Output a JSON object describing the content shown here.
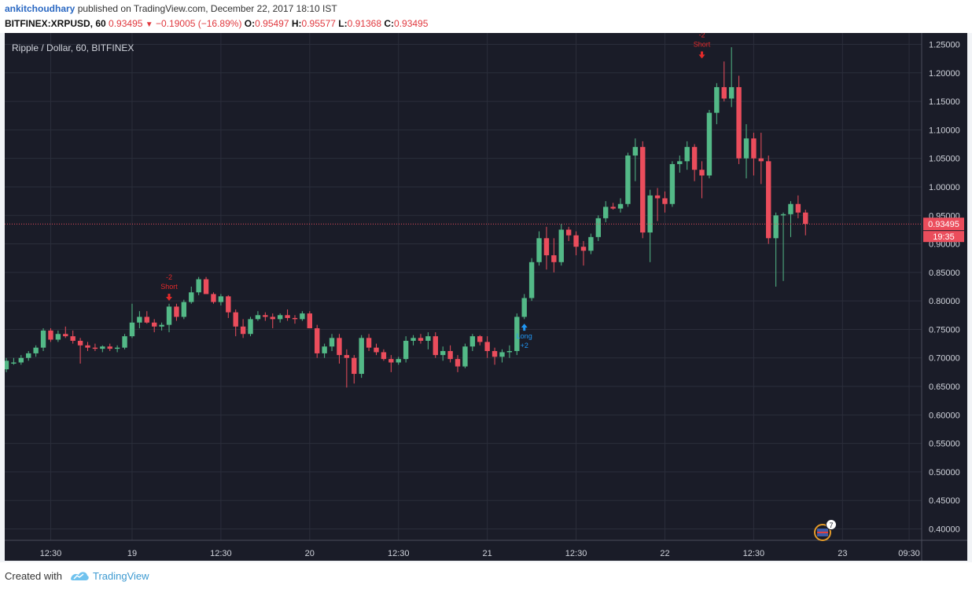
{
  "header": {
    "author": "ankitchoudhary",
    "published": "published on TradingView.com, December 22, 2017 18:10 IST",
    "symbol": "BITFINEX:XRPUSD, 60",
    "last": "0.93495",
    "change": "−0.19005 (−16.89%)",
    "o_label": "O:",
    "o_value": "0.95497",
    "h_label": "H:",
    "h_value": "0.95577",
    "l_label": "L:",
    "l_value": "0.91368",
    "c_label": "C:",
    "c_value": "0.93495"
  },
  "footer": {
    "created_with": "Created with",
    "brand": "TradingView"
  },
  "colors": {
    "background": "#1a1c28",
    "grid": "#2b2e3b",
    "up": "#53b987",
    "down": "#eb4d5c",
    "price_line": "#eb4d5c",
    "signal_short": "#e32a2a",
    "signal_long": "#2196f3"
  },
  "chart_data": {
    "type": "candlestick",
    "title": "Ripple / Dollar, 60, BITFINEX",
    "ylim": [
      0.38,
      1.27
    ],
    "y_ticks": [
      "1.25000",
      "1.20000",
      "1.15000",
      "1.10000",
      "1.05000",
      "1.00000",
      "0.95000",
      "0.90000",
      "0.85000",
      "0.80000",
      "0.75000",
      "0.70000",
      "0.65000",
      "0.60000",
      "0.55000",
      "0.50000",
      "0.45000",
      "0.40000"
    ],
    "x_ticks": [
      {
        "label": "12:30",
        "i": 6.0
      },
      {
        "label": "19",
        "i": 17.0
      },
      {
        "label": "12:30",
        "i": 29.0
      },
      {
        "label": "20",
        "i": 41.0
      },
      {
        "label": "12:30",
        "i": 53.0
      },
      {
        "label": "21",
        "i": 65.0
      },
      {
        "label": "12:30",
        "i": 77.0
      },
      {
        "label": "22",
        "i": 89.0
      },
      {
        "label": "12:30",
        "i": 101.0
      },
      {
        "label": "23",
        "i": 113.0
      },
      {
        "label": "09:30",
        "i": 122.0
      }
    ],
    "last_price": 0.93495,
    "last_price_label": "0.93495",
    "countdown_label": "19:35",
    "signals": [
      {
        "type": "short",
        "i": 22,
        "price": 0.785,
        "text": "Short",
        "qty": "-2"
      },
      {
        "type": "long",
        "i": 70,
        "price": 0.76,
        "text": "Long",
        "qty": "+2"
      },
      {
        "type": "short",
        "i": 94,
        "price": 1.21,
        "text": "Short",
        "qty": "-2"
      }
    ],
    "events_badge": "7",
    "candles": [
      [
        0.68,
        0.7,
        0.675,
        0.695
      ],
      [
        0.69,
        0.7,
        0.688,
        0.692
      ],
      [
        0.692,
        0.705,
        0.688,
        0.7
      ],
      [
        0.7,
        0.712,
        0.695,
        0.708
      ],
      [
        0.708,
        0.722,
        0.702,
        0.718
      ],
      [
        0.718,
        0.752,
        0.712,
        0.748
      ],
      [
        0.748,
        0.752,
        0.728,
        0.732
      ],
      [
        0.732,
        0.748,
        0.728,
        0.742
      ],
      [
        0.742,
        0.755,
        0.735,
        0.738
      ],
      [
        0.738,
        0.748,
        0.725,
        0.73
      ],
      [
        0.73,
        0.735,
        0.69,
        0.722
      ],
      [
        0.722,
        0.728,
        0.712,
        0.718
      ],
      [
        0.718,
        0.725,
        0.712,
        0.716
      ],
      [
        0.716,
        0.722,
        0.71,
        0.72
      ],
      [
        0.72,
        0.725,
        0.712,
        0.716
      ],
      [
        0.716,
        0.722,
        0.71,
        0.718
      ],
      [
        0.718,
        0.742,
        0.715,
        0.738
      ],
      [
        0.738,
        0.795,
        0.735,
        0.762
      ],
      [
        0.762,
        0.782,
        0.752,
        0.772
      ],
      [
        0.772,
        0.782,
        0.76,
        0.762
      ],
      [
        0.762,
        0.768,
        0.745,
        0.755
      ],
      [
        0.755,
        0.762,
        0.748,
        0.758
      ],
      [
        0.758,
        0.795,
        0.745,
        0.79
      ],
      [
        0.79,
        0.795,
        0.765,
        0.772
      ],
      [
        0.772,
        0.802,
        0.768,
        0.798
      ],
      [
        0.798,
        0.825,
        0.795,
        0.815
      ],
      [
        0.815,
        0.842,
        0.81,
        0.838
      ],
      [
        0.838,
        0.842,
        0.815,
        0.812
      ],
      [
        0.812,
        0.815,
        0.795,
        0.798
      ],
      [
        0.798,
        0.812,
        0.792,
        0.808
      ],
      [
        0.808,
        0.81,
        0.77,
        0.78
      ],
      [
        0.78,
        0.785,
        0.738,
        0.755
      ],
      [
        0.755,
        0.768,
        0.735,
        0.742
      ],
      [
        0.742,
        0.772,
        0.738,
        0.768
      ],
      [
        0.768,
        0.782,
        0.765,
        0.775
      ],
      [
        0.775,
        0.78,
        0.765,
        0.772
      ],
      [
        0.772,
        0.778,
        0.752,
        0.768
      ],
      [
        0.768,
        0.778,
        0.762,
        0.775
      ],
      [
        0.775,
        0.785,
        0.765,
        0.77
      ],
      [
        0.77,
        0.775,
        0.76,
        0.768
      ],
      [
        0.768,
        0.782,
        0.765,
        0.778
      ],
      [
        0.778,
        0.782,
        0.755,
        0.752
      ],
      [
        0.752,
        0.758,
        0.7,
        0.708
      ],
      [
        0.708,
        0.725,
        0.7,
        0.72
      ],
      [
        0.72,
        0.742,
        0.712,
        0.735
      ],
      [
        0.735,
        0.742,
        0.69,
        0.705
      ],
      [
        0.705,
        0.715,
        0.648,
        0.7
      ],
      [
        0.7,
        0.705,
        0.655,
        0.672
      ],
      [
        0.672,
        0.74,
        0.665,
        0.735
      ],
      [
        0.735,
        0.742,
        0.712,
        0.718
      ],
      [
        0.718,
        0.725,
        0.705,
        0.71
      ],
      [
        0.71,
        0.715,
        0.695,
        0.698
      ],
      [
        0.698,
        0.705,
        0.675,
        0.692
      ],
      [
        0.692,
        0.702,
        0.688,
        0.698
      ],
      [
        0.698,
        0.738,
        0.692,
        0.73
      ],
      [
        0.73,
        0.74,
        0.722,
        0.735
      ],
      [
        0.735,
        0.742,
        0.725,
        0.73
      ],
      [
        0.73,
        0.745,
        0.715,
        0.738
      ],
      [
        0.738,
        0.745,
        0.7,
        0.705
      ],
      [
        0.705,
        0.72,
        0.695,
        0.712
      ],
      [
        0.712,
        0.722,
        0.692,
        0.698
      ],
      [
        0.698,
        0.705,
        0.675,
        0.685
      ],
      [
        0.685,
        0.725,
        0.682,
        0.72
      ],
      [
        0.72,
        0.742,
        0.712,
        0.738
      ],
      [
        0.738,
        0.74,
        0.722,
        0.728
      ],
      [
        0.728,
        0.738,
        0.7,
        0.712
      ],
      [
        0.712,
        0.718,
        0.688,
        0.702
      ],
      [
        0.702,
        0.715,
        0.692,
        0.71
      ],
      [
        0.71,
        0.722,
        0.7,
        0.712
      ],
      [
        0.712,
        0.778,
        0.705,
        0.772
      ],
      [
        0.772,
        0.812,
        0.768,
        0.805
      ],
      [
        0.805,
        0.875,
        0.8,
        0.868
      ],
      [
        0.868,
        0.922,
        0.862,
        0.91
      ],
      [
        0.91,
        0.93,
        0.855,
        0.88
      ],
      [
        0.88,
        0.91,
        0.85,
        0.868
      ],
      [
        0.868,
        0.935,
        0.862,
        0.925
      ],
      [
        0.925,
        0.93,
        0.905,
        0.915
      ],
      [
        0.915,
        0.922,
        0.88,
        0.895
      ],
      [
        0.895,
        0.905,
        0.862,
        0.888
      ],
      [
        0.888,
        0.918,
        0.882,
        0.912
      ],
      [
        0.912,
        0.95,
        0.905,
        0.945
      ],
      [
        0.945,
        0.975,
        0.938,
        0.965
      ],
      [
        0.965,
        0.972,
        0.96,
        0.962
      ],
      [
        0.962,
        0.98,
        0.955,
        0.97
      ],
      [
        0.97,
        1.06,
        0.965,
        1.055
      ],
      [
        1.055,
        1.085,
        1.01,
        1.07
      ],
      [
        1.07,
        1.08,
        0.91,
        0.92
      ],
      [
        0.92,
        0.995,
        0.868,
        0.985
      ],
      [
        0.985,
        0.998,
        0.94,
        0.98
      ],
      [
        0.98,
        0.992,
        0.955,
        0.97
      ],
      [
        0.97,
        1.045,
        0.965,
        1.04
      ],
      [
        1.04,
        1.055,
        1.025,
        1.045
      ],
      [
        1.045,
        1.08,
        1.03,
        1.07
      ],
      [
        1.07,
        1.075,
        1.01,
        1.03
      ],
      [
        1.03,
        1.045,
        0.98,
        1.02
      ],
      [
        1.02,
        1.135,
        1.015,
        1.13
      ],
      [
        1.13,
        1.182,
        1.11,
        1.175
      ],
      [
        1.175,
        1.22,
        1.15,
        1.155
      ],
      [
        1.155,
        1.245,
        1.14,
        1.175
      ],
      [
        1.175,
        1.195,
        1.04,
        1.05
      ],
      [
        1.05,
        1.11,
        1.015,
        1.085
      ],
      [
        1.085,
        1.095,
        1.02,
        1.05
      ],
      [
        1.05,
        1.095,
        1.005,
        1.045
      ],
      [
        1.045,
        1.055,
        0.9,
        0.91
      ],
      [
        0.91,
        0.955,
        0.825,
        0.95
      ],
      [
        0.95,
        0.955,
        0.835,
        0.952
      ],
      [
        0.952,
        0.975,
        0.912,
        0.97
      ],
      [
        0.97,
        0.985,
        0.945,
        0.955
      ],
      [
        0.955,
        0.96,
        0.915,
        0.935
      ]
    ]
  }
}
